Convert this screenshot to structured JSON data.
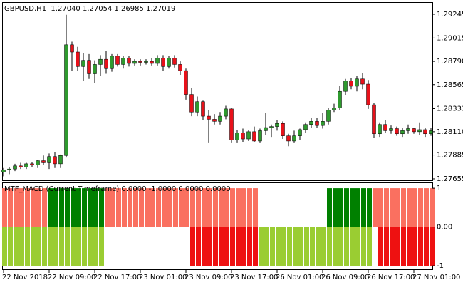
{
  "chart_data": [
    {
      "type": "candlestick",
      "title": "GBPUSD,H1  1.27040 1.27054 1.26985 1.27019",
      "categories": [
        "22 Nov 2018",
        null,
        null,
        null,
        null,
        null,
        null,
        null,
        "22 Nov 09:00",
        null,
        null,
        null,
        null,
        null,
        null,
        null,
        "22 Nov 17:00",
        null,
        null,
        null,
        null,
        null,
        null,
        null,
        "23 Nov 01:00",
        null,
        null,
        null,
        null,
        null,
        null,
        null,
        "23 Nov 09:00",
        null,
        null,
        null,
        null,
        null,
        null,
        null,
        "23 Nov 17:00",
        null,
        null,
        null,
        null,
        null,
        null,
        null,
        "26 Nov 01:00",
        null,
        null,
        null,
        null,
        null,
        null,
        null,
        "26 Nov 09:00",
        null,
        null,
        null,
        null,
        null,
        null,
        null,
        "26 Nov 17:00",
        null,
        null,
        null,
        null,
        null,
        null,
        null,
        "27 Nov 01:00",
        null,
        null,
        null
      ],
      "open": [
        1.2772,
        1.2774,
        1.2775,
        1.2778,
        1.2777,
        1.278,
        1.2779,
        1.2783,
        1.2781,
        1.2787,
        1.278,
        1.2788,
        1.2895,
        1.2888,
        1.2874,
        1.288,
        1.2867,
        1.2876,
        1.2881,
        1.2872,
        1.2884,
        1.2876,
        1.2882,
        1.2877,
        1.2879,
        1.2878,
        1.2879,
        1.2877,
        1.2882,
        1.2874,
        1.2882,
        1.2876,
        1.287,
        1.2847,
        1.283,
        1.284,
        1.2826,
        1.2823,
        1.2821,
        1.2826,
        1.2833,
        1.2803,
        1.281,
        1.2804,
        1.2811,
        1.2802,
        1.2812,
        1.2815,
        1.2816,
        1.2819,
        1.2807,
        1.2802,
        1.2807,
        1.2813,
        1.2818,
        1.2821,
        1.2817,
        1.2821,
        1.2832,
        1.2834,
        1.285,
        1.286,
        1.2855,
        1.2862,
        1.2857,
        1.2837,
        1.2809,
        1.2818,
        1.2812,
        1.2814,
        1.2809,
        1.2812,
        1.2814,
        1.2811,
        1.2813,
        1.2809
      ],
      "high": [
        1.2776,
        1.2777,
        1.278,
        1.2781,
        1.2781,
        1.2782,
        1.2784,
        1.2788,
        1.279,
        1.2791,
        1.2789,
        1.2924,
        1.2898,
        1.2893,
        1.2887,
        1.2886,
        1.288,
        1.2885,
        1.2889,
        1.2886,
        1.2886,
        1.2884,
        1.2884,
        1.2881,
        1.2881,
        1.2881,
        1.2882,
        1.2885,
        1.2885,
        1.2884,
        1.2885,
        1.2879,
        1.2872,
        1.2853,
        1.2845,
        1.2841,
        1.2832,
        1.2828,
        1.283,
        1.2836,
        1.2834,
        1.2813,
        1.2814,
        1.2813,
        1.2816,
        1.2814,
        1.2829,
        1.2818,
        1.2822,
        1.2821,
        1.2809,
        1.2812,
        1.2814,
        1.282,
        1.2824,
        1.2824,
        1.2829,
        1.2834,
        1.2838,
        1.2855,
        1.2862,
        1.2863,
        1.2865,
        1.2868,
        1.2861,
        1.2839,
        1.282,
        1.2822,
        1.2817,
        1.2816,
        1.2815,
        1.2818,
        1.2815,
        1.282,
        1.2815,
        1.2815
      ],
      "low": [
        1.2768,
        1.277,
        1.2773,
        1.2775,
        1.2775,
        1.2777,
        1.2776,
        1.2779,
        1.2775,
        1.2776,
        1.2776,
        1.2786,
        1.287,
        1.287,
        1.286,
        1.2862,
        1.2858,
        1.2865,
        1.2867,
        1.2869,
        1.2874,
        1.2872,
        1.2874,
        1.2875,
        1.2875,
        1.2876,
        1.2875,
        1.2875,
        1.287,
        1.2872,
        1.2873,
        1.2866,
        1.2842,
        1.2826,
        1.2826,
        1.2822,
        1.28,
        1.2818,
        1.2818,
        1.2823,
        1.28,
        1.28,
        1.2801,
        1.2802,
        1.2801,
        1.28,
        1.2808,
        1.2806,
        1.2812,
        1.2804,
        1.2797,
        1.28,
        1.2803,
        1.281,
        1.2815,
        1.2815,
        1.2814,
        1.2818,
        1.283,
        1.2832,
        1.2846,
        1.2852,
        1.285,
        1.2852,
        1.2833,
        1.2805,
        1.2806,
        1.281,
        1.2809,
        1.2807,
        1.2806,
        1.2809,
        1.2809,
        1.2808,
        1.2806,
        1.2807
      ],
      "close": [
        1.2774,
        1.2775,
        1.2778,
        1.2777,
        1.278,
        1.2779,
        1.2783,
        1.2781,
        1.2787,
        1.278,
        1.2788,
        1.2895,
        1.2888,
        1.2874,
        1.288,
        1.2867,
        1.2876,
        1.2881,
        1.2872,
        1.2884,
        1.2876,
        1.2882,
        1.2877,
        1.2879,
        1.2878,
        1.2879,
        1.2877,
        1.2882,
        1.2874,
        1.2882,
        1.2876,
        1.287,
        1.2847,
        1.283,
        1.284,
        1.2826,
        1.2823,
        1.2821,
        1.2826,
        1.2833,
        1.2803,
        1.281,
        1.2804,
        1.2811,
        1.2802,
        1.2812,
        1.2815,
        1.2816,
        1.2819,
        1.2807,
        1.2802,
        1.2807,
        1.2813,
        1.2818,
        1.2821,
        1.2817,
        1.2821,
        1.2832,
        1.2834,
        1.285,
        1.286,
        1.2855,
        1.2862,
        1.2857,
        1.2837,
        1.2809,
        1.2818,
        1.2812,
        1.2814,
        1.2809,
        1.2812,
        1.2814,
        1.2811,
        1.2813,
        1.2809,
        1.2812
      ],
      "up_color": "#2e9a2e",
      "down_color": "#e8111a",
      "ylim": [
        1.27641,
        1.29355
      ],
      "yticks": [
        1.29245,
        1.29015,
        {
          "value": 1.2879,
          "label": "1.28790"
        },
        1.28565,
        1.28333,
        {
          "value": 1.2811,
          "label": "1.28110"
        },
        1.27885,
        1.27655
      ]
    },
    {
      "type": "bar",
      "title": "MTF_MACD (Current Timeframe) 0.0000 -1.0000 0.0000 0.0000",
      "series": [
        {
          "color": "#008000",
          "values": [
            0,
            0,
            0,
            0,
            0,
            0,
            0,
            0,
            1,
            1,
            1,
            1,
            1,
            1,
            1,
            1,
            1,
            1,
            0,
            0,
            0,
            0,
            0,
            0,
            0,
            0,
            0,
            0,
            0,
            0,
            0,
            0,
            0,
            0,
            0,
            0,
            0,
            0,
            0,
            0,
            0,
            0,
            0,
            0,
            0,
            0,
            0,
            0,
            0,
            0,
            0,
            0,
            0,
            0,
            0,
            0,
            0,
            1,
            1,
            1,
            1,
            1,
            1,
            1,
            1,
            0,
            0,
            0,
            0,
            0,
            0,
            0,
            0,
            0,
            0,
            0
          ]
        },
        {
          "color": "#fa7060",
          "values": [
            1,
            1,
            1,
            1,
            1,
            1,
            1,
            1,
            0,
            0,
            0,
            0,
            0,
            0,
            0,
            0,
            0,
            0,
            1,
            1,
            1,
            1,
            1,
            1,
            1,
            1,
            1,
            1,
            1,
            1,
            1,
            1,
            1,
            1,
            1,
            1,
            1,
            1,
            1,
            1,
            1,
            1,
            1,
            1,
            1,
            0,
            0,
            0,
            0,
            0,
            0,
            0,
            0,
            0,
            0,
            0,
            0,
            0,
            0,
            0,
            0,
            0,
            0,
            0,
            0,
            1,
            1,
            1,
            1,
            1,
            1,
            1,
            1,
            1,
            1,
            1
          ]
        },
        {
          "color": "#9acd32",
          "values": [
            -1,
            -1,
            -1,
            -1,
            -1,
            -1,
            -1,
            -1,
            -1,
            -1,
            -1,
            -1,
            -1,
            -1,
            -1,
            -1,
            -1,
            -1,
            0,
            0,
            0,
            0,
            0,
            0,
            0,
            0,
            0,
            0,
            0,
            0,
            0,
            0,
            0,
            0,
            0,
            0,
            0,
            0,
            0,
            0,
            0,
            0,
            0,
            0,
            0,
            -1,
            -1,
            -1,
            -1,
            -1,
            -1,
            -1,
            -1,
            -1,
            -1,
            -1,
            -1,
            -1,
            -1,
            -1,
            -1,
            -1,
            -1,
            -1,
            -1,
            0,
            0,
            0,
            0,
            0,
            0,
            0,
            0,
            0,
            0,
            0
          ]
        },
        {
          "color": "#ee1111",
          "values": [
            0,
            0,
            0,
            0,
            0,
            0,
            0,
            0,
            0,
            0,
            0,
            0,
            0,
            0,
            0,
            0,
            0,
            0,
            0,
            0,
            0,
            0,
            0,
            0,
            0,
            0,
            0,
            0,
            0,
            0,
            0,
            0,
            0,
            -1,
            -1,
            -1,
            -1,
            -1,
            -1,
            -1,
            -1,
            -1,
            -1,
            -1,
            -1,
            0,
            0,
            0,
            0,
            0,
            0,
            0,
            0,
            0,
            0,
            0,
            0,
            0,
            0,
            0,
            0,
            0,
            0,
            0,
            0,
            0,
            -1,
            -1,
            -1,
            -1,
            -1,
            -1,
            -1,
            -1,
            -1,
            -1
          ]
        }
      ],
      "ylim": [
        -1.09,
        1.13
      ],
      "yticks": [
        1,
        {
          "value": 0,
          "label": "0.00"
        },
        -1
      ]
    }
  ]
}
